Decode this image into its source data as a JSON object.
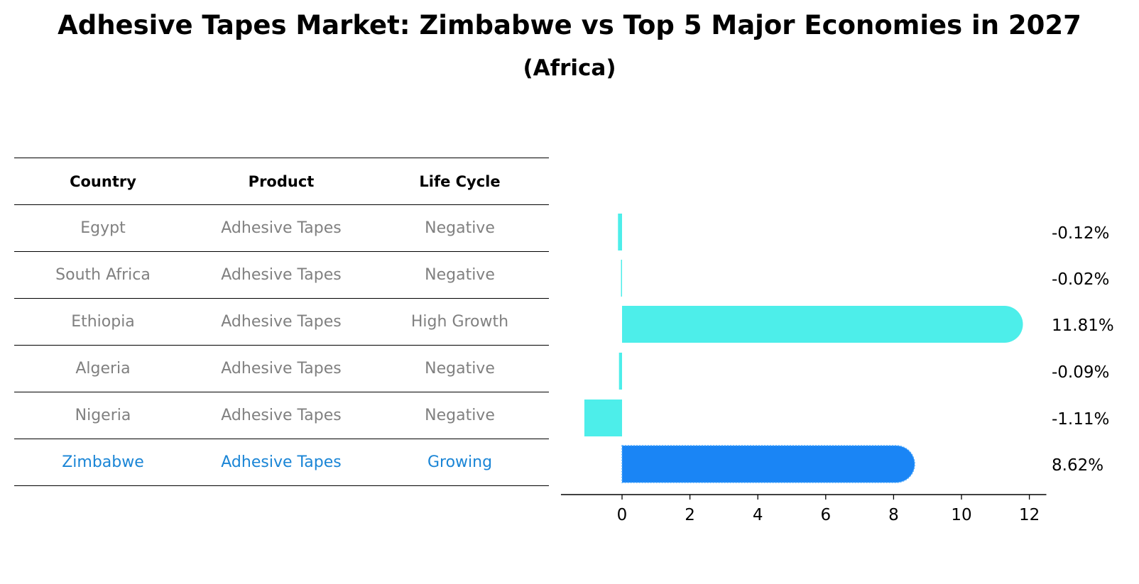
{
  "title": "Adhesive Tapes Market: Zimbabwe vs Top 5 Major Economies in 2027",
  "subtitle": "(Africa)",
  "table": {
    "headers": [
      "Country",
      "Product",
      "Life Cycle"
    ],
    "rows": [
      {
        "country": "Egypt",
        "product": "Adhesive Tapes",
        "life_cycle": "Negative"
      },
      {
        "country": "South Africa",
        "product": "Adhesive Tapes",
        "life_cycle": "Negative"
      },
      {
        "country": "Ethiopia",
        "product": "Adhesive Tapes",
        "life_cycle": "High Growth"
      },
      {
        "country": "Algeria",
        "product": "Adhesive Tapes",
        "life_cycle": "Negative"
      },
      {
        "country": "Nigeria",
        "product": "Adhesive Tapes",
        "life_cycle": "Negative"
      },
      {
        "country": "Zimbabwe",
        "product": "Adhesive Tapes",
        "life_cycle": "Growing"
      }
    ]
  },
  "chart_data": {
    "type": "bar",
    "orientation": "horizontal",
    "categories": [
      "Egypt",
      "South Africa",
      "Ethiopia",
      "Algeria",
      "Nigeria",
      "Zimbabwe"
    ],
    "values": [
      -0.12,
      -0.02,
      11.81,
      -0.09,
      -1.11,
      8.62
    ],
    "value_labels": [
      "-0.12%",
      "-0.02%",
      "11.81%",
      "-0.09%",
      "-1.11%",
      "8.62%"
    ],
    "highlight": "Zimbabwe",
    "xlim": [
      -1.8,
      12.5
    ],
    "xticks": [
      0,
      2,
      4,
      6,
      8,
      10,
      12
    ],
    "colors": {
      "default": "#4deeea",
      "highlight": "#1a85f5"
    },
    "grid": false
  }
}
